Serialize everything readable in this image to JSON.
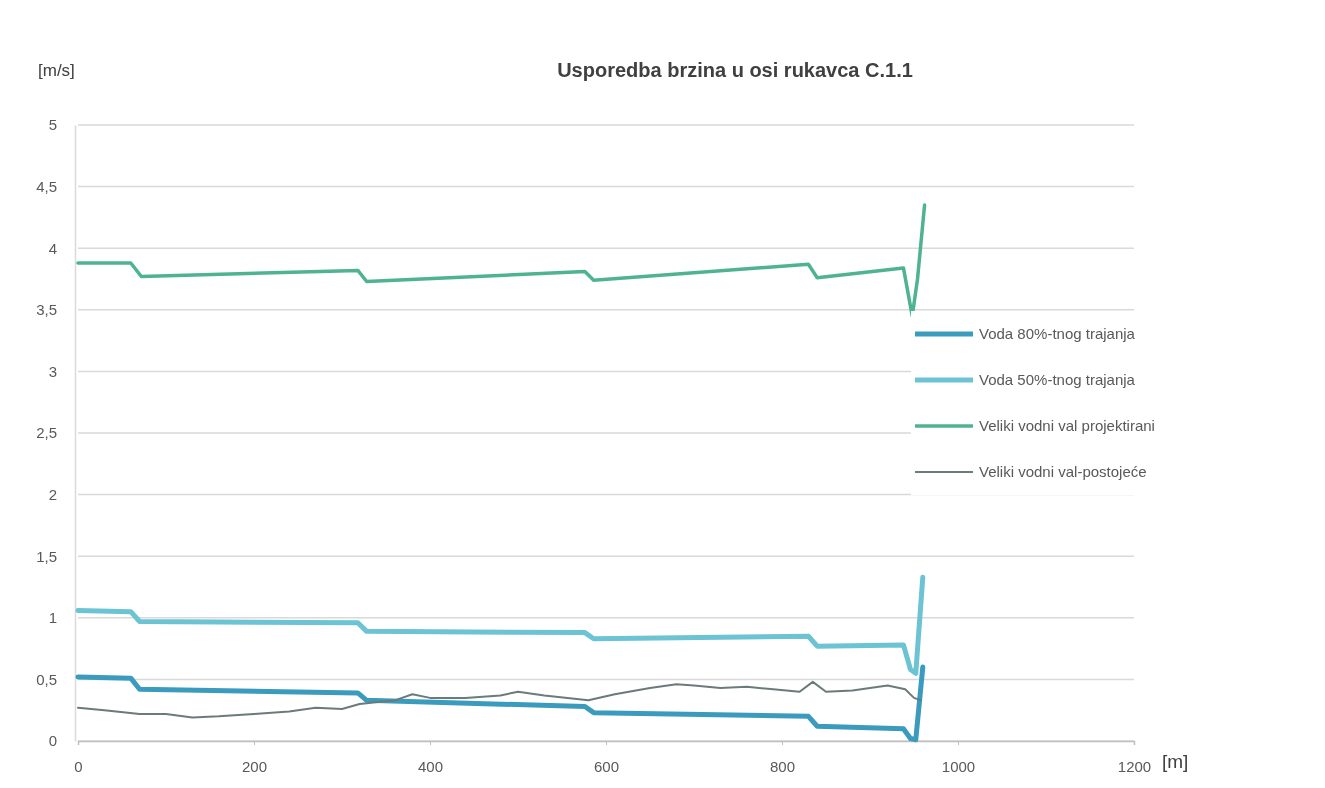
{
  "chart_data": {
    "type": "line",
    "title": "Usporedba brzina u osi rukavca C.1.1",
    "xlabel": "[m]",
    "ylabel": "[m/s]",
    "xlim": [
      0,
      1200
    ],
    "xticks": [
      0,
      200,
      400,
      600,
      800,
      1000,
      1200
    ],
    "ylim": [
      0,
      5
    ],
    "yticks": [
      0,
      {
        "value": 0.5,
        "label": "0,5"
      },
      1,
      {
        "value": 1.5,
        "label": "1,5"
      },
      2,
      {
        "value": 2.5,
        "label": "2,5"
      },
      3,
      {
        "value": 3.5,
        "label": "3,5"
      },
      4,
      {
        "value": 4.5,
        "label": "4,5"
      },
      5
    ],
    "grid": "y",
    "legend": "right",
    "series": [
      {
        "name": "Voda 80%-tnog trajanja",
        "color": "#3a9bbf",
        "x": [
          0,
          60,
          70,
          318,
          328,
          576,
          586,
          830,
          840,
          938,
          946,
          952,
          960
        ],
        "values": [
          0.52,
          0.51,
          0.42,
          0.39,
          0.33,
          0.28,
          0.23,
          0.2,
          0.12,
          0.1,
          0.02,
          0.01,
          0.6
        ]
      },
      {
        "name": "Voda 50%-tnog trajanja",
        "color": "#6cc3d3",
        "x": [
          0,
          60,
          70,
          318,
          328,
          576,
          586,
          830,
          840,
          938,
          946,
          952,
          960
        ],
        "values": [
          1.06,
          1.05,
          0.97,
          0.96,
          0.89,
          0.88,
          0.83,
          0.85,
          0.77,
          0.78,
          0.58,
          0.55,
          1.33
        ]
      },
      {
        "name": "Veliki vodni val projektirani",
        "color": "#4fb391",
        "x": [
          0,
          60,
          72,
          318,
          328,
          576,
          586,
          830,
          840,
          938,
          948,
          954,
          962
        ],
        "values": [
          3.88,
          3.88,
          3.77,
          3.82,
          3.73,
          3.81,
          3.74,
          3.87,
          3.76,
          3.84,
          3.45,
          3.75,
          4.35
        ]
      },
      {
        "name": "Veliki vodni val-postojeće",
        "color": "#6b7b7b",
        "x": [
          0,
          30,
          70,
          100,
          130,
          160,
          200,
          240,
          270,
          300,
          320,
          360,
          380,
          400,
          440,
          480,
          500,
          530,
          580,
          610,
          650,
          680,
          700,
          730,
          760,
          790,
          820,
          835,
          850,
          880,
          920,
          940,
          950,
          958
        ],
        "values": [
          0.27,
          0.25,
          0.22,
          0.22,
          0.19,
          0.2,
          0.22,
          0.24,
          0.27,
          0.26,
          0.3,
          0.33,
          0.38,
          0.35,
          0.35,
          0.37,
          0.4,
          0.37,
          0.33,
          0.38,
          0.43,
          0.46,
          0.45,
          0.43,
          0.44,
          0.42,
          0.4,
          0.48,
          0.4,
          0.41,
          0.45,
          0.42,
          0.35,
          0.33
        ]
      }
    ]
  }
}
